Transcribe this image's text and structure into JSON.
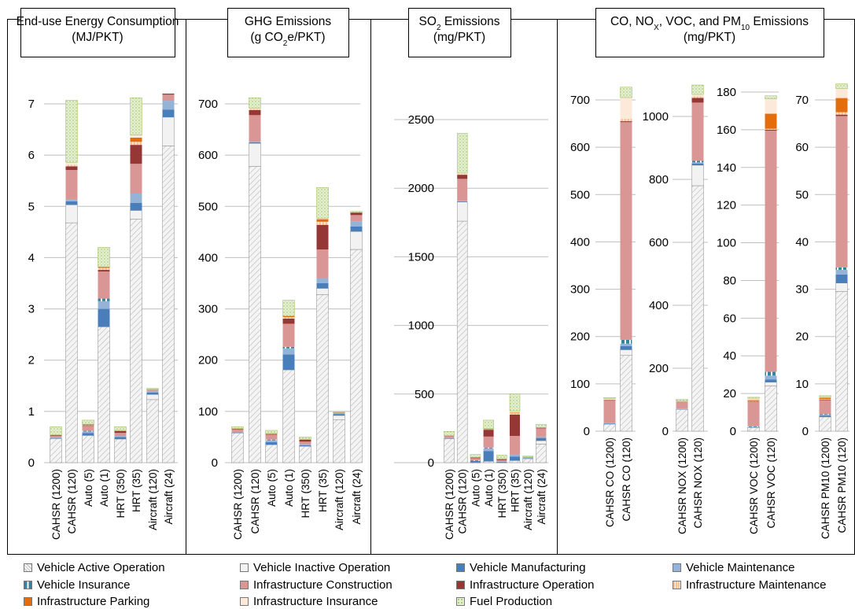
{
  "colors": {
    "Vehicle Active Operation": "#ececec",
    "Vehicle Inactive Operation": "#f2f2f2",
    "Vehicle Manufacturing": "#4a7ebb",
    "Vehicle Maintenance": "#95b3d7",
    "Vehicle Insurance": "#31859c",
    "Infrastructure Construction": "#da9694",
    "Infrastructure Operation": "#953735",
    "Infrastructure Maintenance": "#fac090",
    "Infrastructure Parking": "#e46c0a",
    "Infrastructure Insurance": "#fde9d9",
    "Fuel Production": "#d7e4bd"
  },
  "chart_data": [
    {
      "type": "bar",
      "title": "End-use Energy Consumption (MJ/PKT)",
      "ylim": [
        0,
        7
      ],
      "yticks": [
        0,
        1,
        2,
        3,
        4,
        5,
        6,
        7
      ],
      "categories": [
        "CAHSR (1200)",
        "CAHSR (120)",
        "Auto (5)",
        "Auto (1)",
        "HRT (350)",
        "HRT (35)",
        "Aircraft (120)",
        "Aircraft (24)"
      ],
      "series": [
        {
          "name": "Vehicle Active Operation",
          "values": [
            0.47,
            4.68,
            0.53,
            2.65,
            0.46,
            4.75,
            1.23,
            6.18
          ]
        },
        {
          "name": "Vehicle Inactive Operation",
          "values": [
            0.0,
            0.35,
            0.0,
            0.0,
            0.0,
            0.17,
            0.1,
            0.56
          ]
        },
        {
          "name": "Vehicle Manufacturing",
          "values": [
            0.01,
            0.07,
            0.05,
            0.35,
            0.04,
            0.15,
            0.04,
            0.15
          ]
        },
        {
          "name": "Vehicle Maintenance",
          "values": [
            0.01,
            0.03,
            0.03,
            0.15,
            0.02,
            0.18,
            0.03,
            0.17
          ]
        },
        {
          "name": "Vehicle Insurance",
          "values": [
            0.0,
            0.0,
            0.01,
            0.05,
            0.0,
            0.0,
            0.0,
            0.0
          ]
        },
        {
          "name": "Infrastructure Construction",
          "values": [
            0.04,
            0.58,
            0.1,
            0.53,
            0.06,
            0.58,
            0.03,
            0.12
          ]
        },
        {
          "name": "Infrastructure Operation",
          "values": [
            0.01,
            0.07,
            0.01,
            0.03,
            0.04,
            0.37,
            0.0,
            0.02
          ]
        },
        {
          "name": "Infrastructure Maintenance",
          "values": [
            0.01,
            0.03,
            0.01,
            0.04,
            0.01,
            0.06,
            0.0,
            0.0
          ]
        },
        {
          "name": "Infrastructure Parking",
          "values": [
            0.0,
            0.0,
            0.01,
            0.02,
            0.0,
            0.08,
            0.0,
            0.0
          ]
        },
        {
          "name": "Infrastructure Insurance",
          "values": [
            0.0,
            0.05,
            0.0,
            0.0,
            0.0,
            0.05,
            0.0,
            0.0
          ]
        },
        {
          "name": "Fuel Production",
          "values": [
            0.15,
            1.21,
            0.08,
            0.38,
            0.07,
            0.73,
            0.02,
            0.0
          ]
        }
      ]
    },
    {
      "type": "bar",
      "title": "GHG Emissions (g CO₂e/PKT)",
      "ylim": [
        0,
        700
      ],
      "yticks": [
        0,
        100,
        200,
        300,
        400,
        500,
        600,
        700
      ],
      "categories": [
        "CAHSR (1200)",
        "CAHSR (120)",
        "Auto (5)",
        "Auto (1)",
        "HRT (350)",
        "HRT (35)",
        "Aircraft (120)",
        "Aircraft (24)"
      ],
      "series": [
        {
          "name": "Vehicle Active Operation",
          "values": [
            58,
            578,
            35,
            181,
            32,
            328,
            84,
            416
          ]
        },
        {
          "name": "Vehicle Inactive Operation",
          "values": [
            0,
            45,
            0,
            0,
            0,
            12,
            8,
            35
          ]
        },
        {
          "name": "Vehicle Manufacturing",
          "values": [
            1,
            2,
            5,
            30,
            2,
            10,
            3,
            10
          ]
        },
        {
          "name": "Vehicle Maintenance",
          "values": [
            1,
            1,
            4,
            12,
            2,
            10,
            1,
            10
          ]
        },
        {
          "name": "Vehicle Insurance",
          "values": [
            0,
            0,
            1,
            3,
            0,
            0,
            0,
            0
          ]
        },
        {
          "name": "Infrastructure Construction",
          "values": [
            5,
            52,
            9,
            45,
            5,
            56,
            2,
            12
          ]
        },
        {
          "name": "Infrastructure Operation",
          "values": [
            1,
            10,
            1,
            10,
            4,
            48,
            0,
            5
          ]
        },
        {
          "name": "Infrastructure Maintenance",
          "values": [
            1,
            2,
            1,
            3,
            1,
            6,
            0,
            0
          ]
        },
        {
          "name": "Infrastructure Parking",
          "values": [
            0,
            0,
            1,
            2,
            0,
            5,
            0,
            0
          ]
        },
        {
          "name": "Infrastructure Insurance",
          "values": [
            0,
            2,
            0,
            0,
            0,
            2,
            0,
            0
          ]
        },
        {
          "name": "Fuel Production",
          "values": [
            3,
            20,
            6,
            31,
            4,
            60,
            1,
            2
          ]
        }
      ]
    },
    {
      "type": "bar",
      "title": "SO₂ Emissions (mg/PKT)",
      "ylim": [
        0,
        2500
      ],
      "yticks": [
        0,
        500,
        1000,
        1500,
        2000,
        2500
      ],
      "categories": [
        "CAHSR (1200)",
        "CAHSR (120)",
        "Auto (5)",
        "Auto (1)",
        "HRT (350)",
        "HRT (35)",
        "Aircraft (120)",
        "Aircraft (24)"
      ],
      "series": [
        {
          "name": "Vehicle Active Operation",
          "values": [
            175,
            1760,
            2,
            10,
            2,
            15,
            30,
            135
          ]
        },
        {
          "name": "Vehicle Inactive Operation",
          "values": [
            0,
            140,
            0,
            0,
            0,
            0,
            3,
            25
          ]
        },
        {
          "name": "Vehicle Manufacturing",
          "values": [
            3,
            5,
            10,
            75,
            5,
            30,
            3,
            20
          ]
        },
        {
          "name": "Vehicle Maintenance",
          "values": [
            2,
            3,
            5,
            20,
            3,
            15,
            2,
            10
          ]
        },
        {
          "name": "Vehicle Insurance",
          "values": [
            0,
            0,
            1,
            5,
            0,
            0,
            0,
            0
          ]
        },
        {
          "name": "Infrastructure Construction",
          "values": [
            12,
            160,
            15,
            80,
            8,
            135,
            3,
            60
          ]
        },
        {
          "name": "Infrastructure Operation",
          "values": [
            5,
            30,
            3,
            50,
            10,
            155,
            0,
            5
          ]
        },
        {
          "name": "Infrastructure Maintenance",
          "values": [
            1,
            5,
            2,
            5,
            1,
            10,
            0,
            0
          ]
        },
        {
          "name": "Infrastructure Parking",
          "values": [
            0,
            0,
            1,
            3,
            0,
            5,
            0,
            0
          ]
        },
        {
          "name": "Infrastructure Insurance",
          "values": [
            0,
            7,
            0,
            0,
            0,
            10,
            0,
            0
          ]
        },
        {
          "name": "Fuel Production",
          "values": [
            30,
            290,
            21,
            62,
            26,
            125,
            7,
            25
          ]
        }
      ]
    },
    {
      "type": "bar",
      "title": "CO, NOX, VOC, and PM10 Emissions (mg/PKT)",
      "title_line1_parts": [
        "CO, NO",
        "X",
        ", VOC, and PM",
        "10",
        " Emissions"
      ],
      "title_line2": "(mg/PKT)",
      "subcharts": [
        {
          "categories": [
            "CAHSR CO (1200)",
            "CAHSR CO (120)"
          ],
          "ylim": [
            0,
            700
          ],
          "yticks": [
            0,
            100,
            200,
            300,
            400,
            500,
            600,
            700
          ],
          "series": [
            {
              "name": "Vehicle Active Operation",
              "values": [
                15,
                160
              ]
            },
            {
              "name": "Vehicle Inactive Operation",
              "values": [
                0,
                12
              ]
            },
            {
              "name": "Vehicle Manufacturing",
              "values": [
                1,
                8
              ]
            },
            {
              "name": "Vehicle Maintenance",
              "values": [
                1,
                5
              ]
            },
            {
              "name": "Vehicle Insurance",
              "values": [
                0,
                8
              ]
            },
            {
              "name": "Infrastructure Construction",
              "values": [
                48,
                460
              ]
            },
            {
              "name": "Infrastructure Operation",
              "values": [
                1,
                2
              ]
            },
            {
              "name": "Infrastructure Maintenance",
              "values": [
                1,
                5
              ]
            },
            {
              "name": "Infrastructure Parking",
              "values": [
                0,
                0
              ]
            },
            {
              "name": "Infrastructure Insurance",
              "values": [
                2,
                45
              ]
            },
            {
              "name": "Fuel Production",
              "values": [
                2,
                22
              ]
            }
          ]
        },
        {
          "categories": [
            "CAHSR NOX (1200)",
            "CAHSR NOX (120)"
          ],
          "ylim": [
            0,
            1000
          ],
          "yticks": [
            0,
            200,
            400,
            600,
            800,
            1000
          ],
          "series": [
            {
              "name": "Vehicle Active Operation",
              "values": [
                70,
                780
              ]
            },
            {
              "name": "Vehicle Inactive Operation",
              "values": [
                0,
                65
              ]
            },
            {
              "name": "Vehicle Manufacturing",
              "values": [
                1,
                5
              ]
            },
            {
              "name": "Vehicle Maintenance",
              "values": [
                1,
                4
              ]
            },
            {
              "name": "Vehicle Insurance",
              "values": [
                0,
                5
              ]
            },
            {
              "name": "Infrastructure Construction",
              "values": [
                20,
                185
              ]
            },
            {
              "name": "Infrastructure Operation",
              "values": [
                2,
                15
              ]
            },
            {
              "name": "Infrastructure Maintenance",
              "values": [
                1,
                5
              ]
            },
            {
              "name": "Infrastructure Parking",
              "values": [
                0,
                0
              ]
            },
            {
              "name": "Infrastructure Insurance",
              "values": [
                1,
                6
              ]
            },
            {
              "name": "Fuel Production",
              "values": [
                5,
                30
              ]
            }
          ]
        },
        {
          "categories": [
            "CAHSR VOC (1200)",
            "CAHSR VOC (120)"
          ],
          "ylim": [
            0,
            180
          ],
          "yticks": [
            0,
            20,
            40,
            60,
            80,
            100,
            120,
            140,
            160,
            180
          ],
          "series": [
            {
              "name": "Vehicle Active Operation",
              "values": [
                2,
                24
              ]
            },
            {
              "name": "Vehicle Inactive Operation",
              "values": [
                0,
                2
              ]
            },
            {
              "name": "Vehicle Manufacturing",
              "values": [
                0.2,
                1.5
              ]
            },
            {
              "name": "Vehicle Maintenance",
              "values": [
                0.2,
                2
              ]
            },
            {
              "name": "Vehicle Insurance",
              "values": [
                0.2,
                2
              ]
            },
            {
              "name": "Infrastructure Construction",
              "values": [
                13,
                128
              ]
            },
            {
              "name": "Infrastructure Operation",
              "values": [
                0.2,
                0.5
              ]
            },
            {
              "name": "Infrastructure Maintenance",
              "values": [
                0.2,
                0.5
              ]
            },
            {
              "name": "Infrastructure Parking",
              "values": [
                0.5,
                8
              ]
            },
            {
              "name": "Infrastructure Insurance",
              "values": [
                1,
                8
              ]
            },
            {
              "name": "Fuel Production",
              "values": [
                0.5,
                1.5
              ]
            }
          ]
        },
        {
          "categories": [
            "CAHSR PM10 (1200)",
            "CAHSR PM10 (120)"
          ],
          "ylim": [
            0,
            70
          ],
          "yticks": [
            0,
            10,
            20,
            30,
            40,
            50,
            60,
            70
          ],
          "series": [
            {
              "name": "Vehicle Active Operation",
              "values": [
                3,
                29.5
              ]
            },
            {
              "name": "Vehicle Inactive Operation",
              "values": [
                0,
                1.8
              ]
            },
            {
              "name": "Vehicle Manufacturing",
              "values": [
                0.3,
                1.8
              ]
            },
            {
              "name": "Vehicle Maintenance",
              "values": [
                0.2,
                1
              ]
            },
            {
              "name": "Vehicle Insurance",
              "values": [
                0.1,
                0.5
              ]
            },
            {
              "name": "Infrastructure Construction",
              "values": [
                3,
                32
              ]
            },
            {
              "name": "Infrastructure Operation",
              "values": [
                0.1,
                0.3
              ]
            },
            {
              "name": "Infrastructure Maintenance",
              "values": [
                0.1,
                0.5
              ]
            },
            {
              "name": "Infrastructure Parking",
              "values": [
                0.3,
                3
              ]
            },
            {
              "name": "Infrastructure Insurance",
              "values": [
                0.2,
                2
              ]
            },
            {
              "name": "Fuel Production",
              "values": [
                0.2,
                1
              ]
            }
          ]
        }
      ]
    }
  ],
  "legend": [
    "Vehicle Active Operation",
    "Vehicle Inactive Operation",
    "Vehicle Manufacturing",
    "Vehicle Maintenance",
    "Vehicle Insurance",
    "Infrastructure  Construction",
    "Infrastructure  Operation",
    "Infrastructure  Maintenance",
    "Infrastructure  Parking",
    "Infrastructure  Insurance",
    "Fuel Production"
  ]
}
